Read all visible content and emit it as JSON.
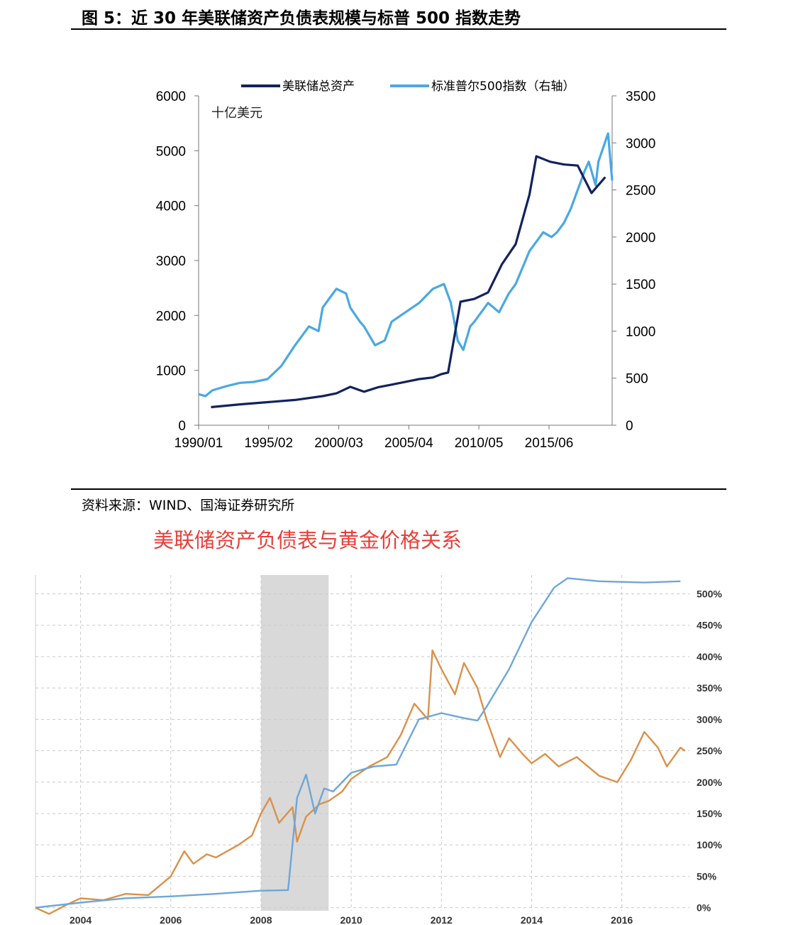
{
  "header": {
    "figure_title": "图 5：近 30 年美联储资产负债表规模与标普 500 指数走势",
    "source": "资料来源：WIND、国海证券研究所",
    "gold_chart_title": "美联储资产负债表与黄金价格关系"
  },
  "colors": {
    "fed_assets": "#13225e",
    "sp500": "#4aa8e2",
    "fed_balance_gold_chart": "#6fa6d8",
    "gold": "#d9914a",
    "recession_band": "#d9d9d9",
    "gold_chart_title": "#e8403a"
  },
  "chart_data": [
    {
      "type": "line",
      "unit_label": "十亿美元",
      "x_tick_labels": [
        "1990/01",
        "1995/02",
        "2000/03",
        "2005/04",
        "2010/05",
        "2015/06"
      ],
      "x_ticks": [
        1990.0,
        1995.08,
        2000.17,
        2005.25,
        2010.33,
        2015.42
      ],
      "xlim": [
        1990.0,
        2020.0
      ],
      "left_axis": {
        "ylim": [
          0,
          6000
        ],
        "ticks": [
          0,
          1000,
          2000,
          3000,
          4000,
          5000,
          6000
        ]
      },
      "right_axis": {
        "ylim": [
          0,
          3500
        ],
        "ticks": [
          0,
          500,
          1000,
          1500,
          2000,
          2500,
          3000,
          3500
        ]
      },
      "legend_position": "top",
      "series": [
        {
          "name": "美联储总资产",
          "axis": "left",
          "x": [
            1990.9,
            1993.0,
            1995.0,
            1997.0,
            1999.0,
            2000.0,
            2001.0,
            2002.0,
            2003.0,
            2004.0,
            2005.0,
            2006.0,
            2007.0,
            2007.6,
            2008.1,
            2009.0,
            2010.0,
            2011.0,
            2012.0,
            2013.0,
            2014.0,
            2014.5,
            2015.5,
            2016.5,
            2017.5,
            2018.5,
            2019.5
          ],
          "values": [
            330,
            380,
            420,
            460,
            530,
            580,
            700,
            610,
            690,
            740,
            790,
            840,
            870,
            930,
            960,
            2250,
            2300,
            2420,
            2930,
            3300,
            4200,
            4900,
            4800,
            4750,
            4730,
            4230,
            4520
          ]
        },
        {
          "name": "标准普尔500指数（右轴）",
          "axis": "right",
          "x": [
            1990.0,
            1990.5,
            1991.0,
            1992.0,
            1993.0,
            1994.0,
            1995.0,
            1996.0,
            1997.0,
            1998.0,
            1998.7,
            1999.0,
            1999.5,
            2000.0,
            2000.7,
            2001.0,
            2001.7,
            2002.0,
            2002.8,
            2003.5,
            2004.0,
            2005.0,
            2006.0,
            2007.0,
            2007.8,
            2008.3,
            2008.8,
            2009.2,
            2009.7,
            2010.0,
            2011.0,
            2011.8,
            2012.5,
            2013.0,
            2014.0,
            2015.0,
            2015.6,
            2016.0,
            2016.5,
            2017.0,
            2018.0,
            2018.3,
            2018.8,
            2019.0,
            2019.7,
            2020.0
          ],
          "values": [
            330,
            310,
            370,
            415,
            450,
            460,
            490,
            630,
            850,
            1050,
            1000,
            1250,
            1350,
            1450,
            1400,
            1250,
            1100,
            1050,
            850,
            900,
            1100,
            1200,
            1300,
            1450,
            1500,
            1300,
            900,
            800,
            1050,
            1100,
            1300,
            1200,
            1400,
            1500,
            1850,
            2050,
            2000,
            2050,
            2150,
            2300,
            2700,
            2800,
            2550,
            2800,
            3100,
            2600
          ]
        }
      ]
    },
    {
      "type": "line",
      "title": "美联储资产负债表与黄金价格关系",
      "x_tick_labels": [
        "2004",
        "2006",
        "2008",
        "2010",
        "2012",
        "2014",
        "2016"
      ],
      "x_ticks": [
        2004,
        2006,
        2008,
        2010,
        2012,
        2014,
        2016
      ],
      "xlim": [
        2003.0,
        2017.5
      ],
      "y_tick_labels": [
        "0%",
        "50%",
        "100%",
        "150%",
        "200%",
        "250%",
        "300%",
        "350%",
        "400%",
        "450%",
        "500%"
      ],
      "ylim": [
        -5,
        530
      ],
      "shaded_period": [
        2008.0,
        2009.5
      ],
      "grid": true,
      "series": [
        {
          "axis": "right",
          "x": [
            2003.0,
            2004.0,
            2005.0,
            2006.0,
            2007.0,
            2008.0,
            2008.6,
            2008.8,
            2009.0,
            2009.2,
            2009.4,
            2009.6,
            2010.0,
            2010.5,
            2011.0,
            2011.5,
            2012.0,
            2012.5,
            2012.8,
            2013.0,
            2013.5,
            2014.0,
            2014.5,
            2014.8,
            2015.5,
            2016.5,
            2017.3
          ],
          "values": [
            0,
            8,
            15,
            18,
            22,
            27,
            28,
            175,
            212,
            150,
            190,
            185,
            215,
            225,
            228,
            300,
            310,
            302,
            298,
            320,
            380,
            455,
            510,
            525,
            520,
            518,
            520
          ]
        },
        {
          "axis": "right",
          "x": [
            2003.0,
            2003.3,
            2003.7,
            2004.0,
            2004.5,
            2005.0,
            2005.5,
            2006.0,
            2006.3,
            2006.5,
            2006.8,
            2007.0,
            2007.5,
            2007.8,
            2008.0,
            2008.2,
            2008.4,
            2008.7,
            2008.8,
            2009.0,
            2009.3,
            2009.5,
            2009.8,
            2010.0,
            2010.4,
            2010.8,
            2011.1,
            2011.4,
            2011.7,
            2011.8,
            2012.0,
            2012.3,
            2012.5,
            2012.8,
            2013.0,
            2013.3,
            2013.5,
            2013.8,
            2014.0,
            2014.3,
            2014.6,
            2015.0,
            2015.5,
            2015.9,
            2016.2,
            2016.5,
            2016.8,
            2017.0,
            2017.3,
            2017.4
          ],
          "values": [
            0,
            -10,
            5,
            15,
            12,
            22,
            20,
            50,
            90,
            70,
            85,
            80,
            100,
            115,
            150,
            175,
            135,
            160,
            105,
            145,
            165,
            170,
            185,
            205,
            225,
            240,
            275,
            325,
            300,
            410,
            380,
            340,
            390,
            350,
            300,
            240,
            270,
            245,
            230,
            245,
            225,
            240,
            210,
            200,
            235,
            280,
            255,
            225,
            255,
            250
          ]
        }
      ]
    }
  ]
}
